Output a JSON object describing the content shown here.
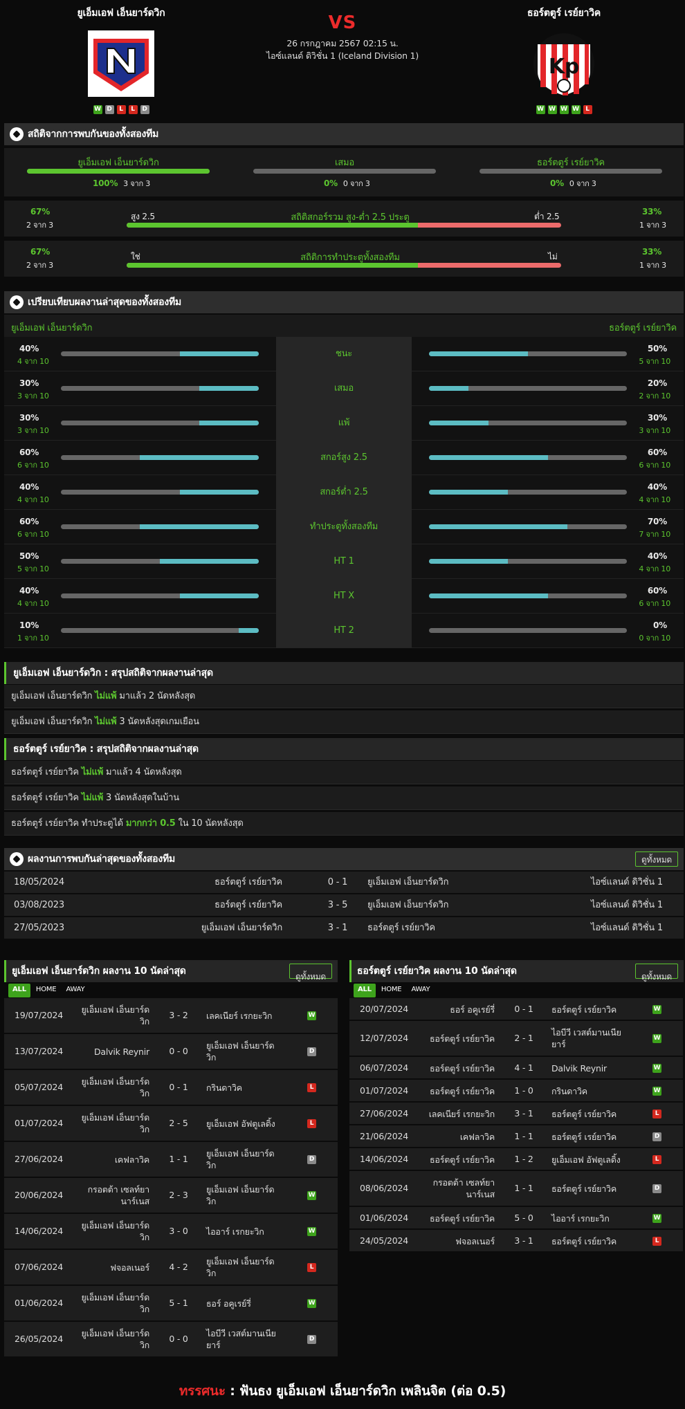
{
  "header": {
    "home": {
      "name": "ยูเอ็มเอฟ เอ็นยาร์ดวิก",
      "form": [
        "W",
        "D",
        "L",
        "L",
        "D"
      ]
    },
    "away": {
      "name": "ธอร์ตตูร์ เรย์ยาวิค",
      "form": [
        "W",
        "W",
        "W",
        "W",
        "L"
      ]
    },
    "vs": "VS",
    "date": "26 กรกฎาคม 2567 02:15 น.",
    "league": "ไอซ์แลนด์ ดิวิชั่น 1 (Iceland Division 1)"
  },
  "h2h_stats": {
    "title": "สถิติจากการพบกันของทั้งสองทีม",
    "home": {
      "name": "ยูเอ็มเอฟ เอ็นยาร์ดวิก",
      "pct": "100%",
      "count": "3 จาก 3",
      "fill": 1
    },
    "draw": {
      "name": "เสมอ",
      "pct": "0%",
      "count": "0 จาก 3",
      "fill": 0
    },
    "away": {
      "name": "ธอร์ตตูร์ เรย์ยาวิค",
      "pct": "0%",
      "count": "0 จาก 3",
      "fill": 0
    },
    "ou": {
      "left_pct": "67%",
      "left_count": "2 จาก 3",
      "left_label": "สูง 2.5",
      "center": "สถิติสกอร์รวม สูง-ต่ำ 2.5 ประตู",
      "right_label": "ต่ำ 2.5",
      "right_pct": "33%",
      "right_count": "1 จาก 3",
      "fill": 0.67
    },
    "btts": {
      "left_pct": "67%",
      "left_count": "2 จาก 3",
      "left_label": "ใช่",
      "center": "สถิติการทำประตูทั้งสองทีม",
      "right_label": "ไม่",
      "right_pct": "33%",
      "right_count": "1 จาก 3",
      "fill": 0.67
    }
  },
  "compare": {
    "title": "เปรียบเทียบผลงานล่าสุดของทั้งสองทีม",
    "home_name": "ยูเอ็มเอฟ เอ็นยาร์ดวิก",
    "away_name": "ธอร์ตตูร์ เรย์ยาวิค",
    "rows": [
      {
        "label": "ชนะ",
        "hp": "40%",
        "hc": "4 จาก 10",
        "hv": 0.4,
        "ap": "50%",
        "ac": "5 จาก 10",
        "av": 0.5
      },
      {
        "label": "เสมอ",
        "hp": "30%",
        "hc": "3 จาก 10",
        "hv": 0.3,
        "ap": "20%",
        "ac": "2 จาก 10",
        "av": 0.2
      },
      {
        "label": "แพ้",
        "hp": "30%",
        "hc": "3 จาก 10",
        "hv": 0.3,
        "ap": "30%",
        "ac": "3 จาก 10",
        "av": 0.3
      },
      {
        "label": "สกอร์สูง 2.5",
        "hp": "60%",
        "hc": "6 จาก 10",
        "hv": 0.6,
        "ap": "60%",
        "ac": "6 จาก 10",
        "av": 0.6
      },
      {
        "label": "สกอร์ต่ำ 2.5",
        "hp": "40%",
        "hc": "4 จาก 10",
        "hv": 0.4,
        "ap": "40%",
        "ac": "4 จาก 10",
        "av": 0.4
      },
      {
        "label": "ทำประตูทั้งสองทีม",
        "hp": "60%",
        "hc": "6 จาก 10",
        "hv": 0.6,
        "ap": "70%",
        "ac": "7 จาก 10",
        "av": 0.7
      },
      {
        "label": "HT 1",
        "hp": "50%",
        "hc": "5 จาก 10",
        "hv": 0.5,
        "ap": "40%",
        "ac": "4 จาก 10",
        "av": 0.4
      },
      {
        "label": "HT X",
        "hp": "40%",
        "hc": "4 จาก 10",
        "hv": 0.4,
        "ap": "60%",
        "ac": "6 จาก 10",
        "av": 0.6
      },
      {
        "label": "HT 2",
        "hp": "10%",
        "hc": "1 จาก 10",
        "hv": 0.1,
        "ap": "0%",
        "ac": "0 จาก 10",
        "av": 0
      }
    ]
  },
  "home_summary": {
    "title": "ยูเอ็มเอฟ เอ็นยาร์ดวิก : สรุปสถิติจากผลงานล่าสุด",
    "lines": [
      {
        "team": "ยูเอ็มเอฟ เอ็นยาร์ดวิก",
        "hl": "ไม่แพ้",
        "rest": "มาแล้ว 2 นัดหลังสุด"
      },
      {
        "team": "ยูเอ็มเอฟ เอ็นยาร์ดวิก",
        "hl": "ไม่แพ้",
        "rest": "3 นัดหลังสุดเกมเยือน"
      }
    ]
  },
  "away_summary": {
    "title": "ธอร์ตตูร์ เรย์ยาวิค : สรุปสถิติจากผลงานล่าสุด",
    "lines": [
      {
        "team": "ธอร์ตตูร์ เรย์ยาวิค",
        "hl": "ไม่แพ้",
        "rest": "มาแล้ว 4 นัดหลังสุด"
      },
      {
        "team": "ธอร์ตตูร์ เรย์ยาวิค",
        "hl": "ไม่แพ้",
        "rest": "3 นัดหลังสุดในบ้าน"
      },
      {
        "team": "ธอร์ตตูร์ เรย์ยาวิค ทำประตูได้",
        "hl": "มากกว่า 0.5",
        "rest": "ใน 10 นัดหลังสุด"
      }
    ]
  },
  "h2h_list": {
    "title": "ผลงานการพบกันล่าสุดของทั้งสองทีม",
    "view_all": "ดูทั้งหมด",
    "rows": [
      {
        "date": "18/05/2024",
        "home": "ธอร์ตตูร์ เรย์ยาวิค",
        "score": "0 - 1",
        "away": "ยูเอ็มเอฟ เอ็นยาร์ดวิก",
        "league": "ไอซ์แลนด์ ดิวิชั่น 1"
      },
      {
        "date": "03/08/2023",
        "home": "ธอร์ตตูร์ เรย์ยาวิค",
        "score": "3 - 5",
        "away": "ยูเอ็มเอฟ เอ็นยาร์ดวิก",
        "league": "ไอซ์แลนด์ ดิวิชั่น 1"
      },
      {
        "date": "27/05/2023",
        "home": "ยูเอ็มเอฟ เอ็นยาร์ดวิก",
        "score": "3 - 1",
        "away": "ธอร์ตตูร์ เรย์ยาวิค",
        "league": "ไอซ์แลนด์ ดิวิชั่น 1"
      }
    ]
  },
  "home_last": {
    "title": "ยูเอ็มเอฟ เอ็นยาร์ดวิก ผลงาน 10 นัดล่าสุด",
    "view_all": "ดูทั้งหมด",
    "tabs": [
      "ALL",
      "HOME",
      "AWAY"
    ],
    "rows": [
      {
        "date": "19/07/2024",
        "home": "ยูเอ็มเอฟ เอ็นยาร์ด\nวิก",
        "score": "3 - 2",
        "away": "เลคเนียร์ เรกยะวิก",
        "res": "W"
      },
      {
        "date": "13/07/2024",
        "home": "Dalvik Reynir",
        "score": "0 - 0",
        "away": "ยูเอ็มเอฟ เอ็นยาร์ด\nวิก",
        "res": "D"
      },
      {
        "date": "05/07/2024",
        "home": "ยูเอ็มเอฟ เอ็นยาร์ด\nวิก",
        "score": "0 - 1",
        "away": "กรินดาวิค",
        "res": "L"
      },
      {
        "date": "01/07/2024",
        "home": "ยูเอ็มเอฟ เอ็นยาร์ด\nวิก",
        "score": "2 - 5",
        "away": "ยูเอ็มเอฟ อัฟตูเลดิ้ง",
        "res": "L"
      },
      {
        "date": "27/06/2024",
        "home": "เคฟลาวิค",
        "score": "1 - 1",
        "away": "ยูเอ็มเอฟ เอ็นยาร์ด\nวิก",
        "res": "D"
      },
      {
        "date": "20/06/2024",
        "home": "กรอตต้า เซลท์ยา\nนาร์เนส",
        "score": "2 - 3",
        "away": "ยูเอ็มเอฟ เอ็นยาร์ด\nวิก",
        "res": "W"
      },
      {
        "date": "14/06/2024",
        "home": "ยูเอ็มเอฟ เอ็นยาร์ด\nวิก",
        "score": "3 - 0",
        "away": "ไออาร์ เรกยะวิก",
        "res": "W"
      },
      {
        "date": "07/06/2024",
        "home": "ฟจอลเนอร์",
        "score": "4 - 2",
        "away": "ยูเอ็มเอฟ เอ็นยาร์ด\nวิก",
        "res": "L"
      },
      {
        "date": "01/06/2024",
        "home": "ยูเอ็มเอฟ เอ็นยาร์ด\nวิก",
        "score": "5 - 1",
        "away": "ธอร์ อคูเรย์รี่",
        "res": "W"
      },
      {
        "date": "26/05/2024",
        "home": "ยูเอ็มเอฟ เอ็นยาร์ด\nวิก",
        "score": "0 - 0",
        "away": "ไอบีวี เวสต์มานเนีย\nยาร์",
        "res": "D"
      }
    ]
  },
  "away_last": {
    "title": "ธอร์ตตูร์ เรย์ยาวิค ผลงาน 10 นัดล่าสุด",
    "view_all": "ดูทั้งหมด",
    "tabs": [
      "ALL",
      "HOME",
      "AWAY"
    ],
    "rows": [
      {
        "date": "20/07/2024",
        "home": "ธอร์ อคูเรย์รี่",
        "score": "0 - 1",
        "away": "ธอร์ตตูร์ เรย์ยาวิค",
        "res": "W"
      },
      {
        "date": "12/07/2024",
        "home": "ธอร์ตตูร์ เรย์ยาวิค",
        "score": "2 - 1",
        "away": "ไอบีวี เวสต์มานเนีย\nยาร์",
        "res": "W"
      },
      {
        "date": "06/07/2024",
        "home": "ธอร์ตตูร์ เรย์ยาวิค",
        "score": "4 - 1",
        "away": "Dalvik Reynir",
        "res": "W"
      },
      {
        "date": "01/07/2024",
        "home": "ธอร์ตตูร์ เรย์ยาวิค",
        "score": "1 - 0",
        "away": "กรินดาวิค",
        "res": "W"
      },
      {
        "date": "27/06/2024",
        "home": "เลคเนียร์ เรกยะวิก",
        "score": "3 - 1",
        "away": "ธอร์ตตูร์ เรย์ยาวิค",
        "res": "L"
      },
      {
        "date": "21/06/2024",
        "home": "เคฟลาวิค",
        "score": "1 - 1",
        "away": "ธอร์ตตูร์ เรย์ยาวิค",
        "res": "D"
      },
      {
        "date": "14/06/2024",
        "home": "ธอร์ตตูร์ เรย์ยาวิค",
        "score": "1 - 2",
        "away": "ยูเอ็มเอฟ อัฟตูเลดิ้ง",
        "res": "L"
      },
      {
        "date": "08/06/2024",
        "home": "กรอตต้า เซลท์ยา\nนาร์เนส",
        "score": "1 - 1",
        "away": "ธอร์ตตูร์ เรย์ยาวิค",
        "res": "D"
      },
      {
        "date": "01/06/2024",
        "home": "ธอร์ตตูร์ เรย์ยาวิค",
        "score": "5 - 0",
        "away": "ไออาร์ เรกยะวิก",
        "res": "W"
      },
      {
        "date": "24/05/2024",
        "home": "ฟจอลเนอร์",
        "score": "3 - 1",
        "away": "ธอร์ตตูร์ เรย์ยาวิค",
        "res": "L"
      }
    ]
  },
  "footer": {
    "label": "ทรรศนะ",
    "sep": ":",
    "text": "ฟันธง ยูเอ็มเอฟ เอ็นยาร์ดวิก เพลินจิต (ต่อ 0.5)"
  },
  "colors": {
    "win": "#3ea31c",
    "draw": "#8a8a8a",
    "loss": "#d4281e",
    "accent": "#5cc52f",
    "vs": "#ec2b2b",
    "bar_cyan": "#5cbcc3",
    "bar_red": "#ec6b6b"
  }
}
